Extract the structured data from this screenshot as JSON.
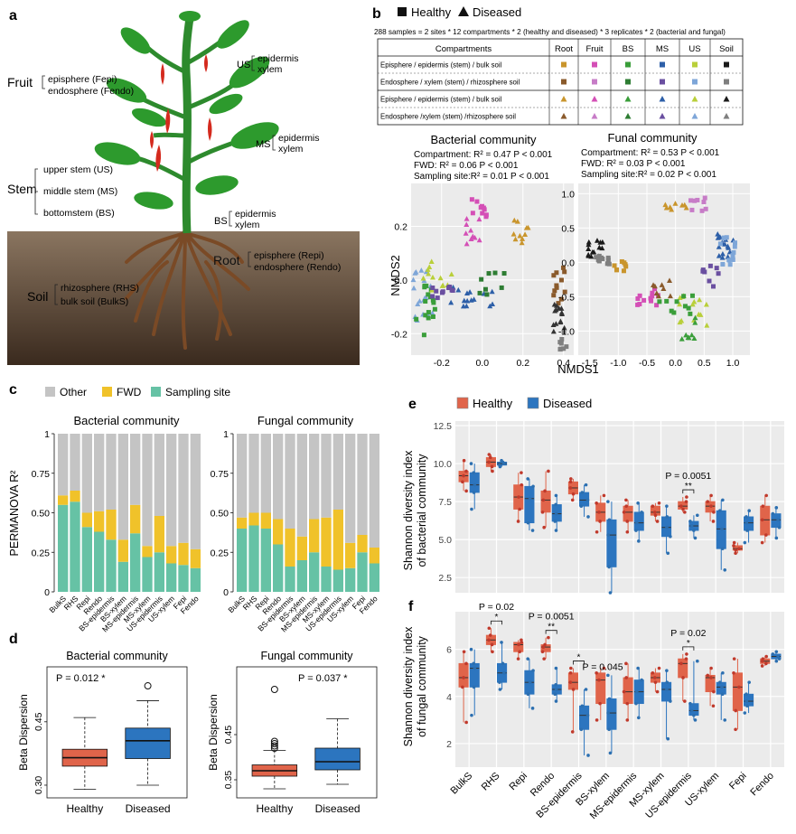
{
  "panel_a": {
    "letter": "a",
    "fruit": "Fruit",
    "fepi": "episphere (Fepi)",
    "fendo": "endosphere (Fendo)",
    "us_tag": "US",
    "us_epi": "epidermis",
    "us_xy": "xylem",
    "ms_tag": "MS",
    "ms_epi": "epidermis",
    "ms_xy": "xylem",
    "bs_tag": "BS",
    "bs_epi": "epidermis",
    "bs_xy": "xylem",
    "stem": "Stem",
    "stem_us": "upper stem (US)",
    "stem_ms": "middle stem (MS)",
    "stem_bs": "bottomstem (BS)",
    "root": "Root",
    "repi": "episphere (Repi)",
    "rendo": "endosphere (Rendo)",
    "soil": "Soil",
    "rhs": "rhizosphere (RHS)",
    "bulks": "bulk soil (BulkS)"
  },
  "panel_b": {
    "letter": "b",
    "legend_healthy": "Healthy",
    "legend_diseased": "Diseased",
    "samples_note": "288 samples =  2 sites  * 12 compartments * 2 (healthy and diseased)  * 3 replicates * 2 (bacterial and fungal)",
    "table_header": [
      "Compartments",
      "Root",
      "Fruit",
      "BS",
      "MS",
      "US",
      "Soil"
    ],
    "table_rows": [
      {
        "label": "Episphere / epidermis (stem) / bulk soil",
        "marker": "square"
      },
      {
        "label": "Endosphere / xylem (stem) / rhizosphere soil",
        "marker": "square"
      },
      {
        "label": "Episphere / epidermis (stem) / bulk soil",
        "marker": "triangle"
      },
      {
        "label": "Endosphere /xylem (stem) /rhizosphere soil",
        "marker": "triangle"
      }
    ],
    "table_colors": [
      [
        "#c9952c",
        "#d44fb6",
        "#3a9e3a",
        "#2d5fa8",
        "#b9cf3a",
        "#1a1a1a"
      ],
      [
        "#8a5a2b",
        "#c77cc7",
        "#2e7d33",
        "#6a4fa0",
        "#7ea6d8",
        "#7f7f7f"
      ],
      [
        "#c9952c",
        "#d44fb6",
        "#3a9e3a",
        "#2d5fa8",
        "#b9cf3a",
        "#1a1a1a"
      ],
      [
        "#8a5a2b",
        "#c77cc7",
        "#2e7d33",
        "#6a4fa0",
        "#7ea6d8",
        "#7f7f7f"
      ]
    ],
    "bact_title": "Bacterial community",
    "bact_stats": [
      "Compartment: R² = 0.47 P < 0.001",
      "FWD: R² = 0.06 P < 0.001",
      "Sampling site:R² = 0.01 P < 0.001"
    ],
    "fung_title": "Funal community",
    "fung_stats": [
      "Compartment: R² = 0.53 P < 0.001",
      "FWD: R² = 0.03 P < 0.001",
      "Sampling site:R² = 0.02 P < 0.001"
    ],
    "xlabel": "NMDS1",
    "ylabel": "NMDS2",
    "bact_xticks": [
      "-0.2",
      "0.0",
      "0.2",
      "0.4"
    ],
    "bact_yticks": [
      "0.2",
      "0.0",
      "-0.2"
    ],
    "fung_xticks": [
      "-1.5",
      "-1.0",
      "-0.5",
      "0.0",
      "0.5",
      "1.0"
    ],
    "fung_yticks": [
      "1.0",
      "0.5",
      "0.0",
      "-0.5",
      "-1.0"
    ]
  },
  "panel_c": {
    "letter": "c",
    "legend": [
      "Other",
      "FWD",
      "Sampling site"
    ],
    "ylabel": "PERMANOVA R²"
  },
  "panel_d": {
    "letter": "d",
    "ylabel": "Beta Dispersion"
  },
  "panel_e": {
    "letter": "e",
    "legend_healthy": "Healthy",
    "legend_diseased": "Diseased",
    "ylabel1": "Shannon diversity index",
    "ylabel2": "of bacterial community"
  },
  "panel_f": {
    "letter": "f",
    "ylabel1": "Shannon diversity index",
    "ylabel2": "of fungal community"
  },
  "chart_data": [
    {
      "id": "c-bacterial",
      "type": "bar",
      "stacked": true,
      "title": "Bacterial community",
      "ylabel": "PERMANOVA R²",
      "ylim": [
        0,
        1
      ],
      "yticks": [
        "0",
        "0.25",
        "0.50",
        "0.75",
        "1"
      ],
      "categories": [
        "BulkS",
        "RHS",
        "Repi",
        "Rendo",
        "BS-epidermis",
        "BS-xylem",
        "MS-epidermis",
        "MS-xylem",
        "US-epidermis",
        "US-xylem",
        "Fepi",
        "Fendo"
      ],
      "series": [
        {
          "name": "Sampling site",
          "color": "#66c2a5",
          "values": [
            0.55,
            0.57,
            0.41,
            0.38,
            0.33,
            0.19,
            0.37,
            0.22,
            0.25,
            0.18,
            0.17,
            0.15
          ]
        },
        {
          "name": "FWD",
          "color": "#f0c22a",
          "values": [
            0.06,
            0.07,
            0.09,
            0.13,
            0.19,
            0.14,
            0.18,
            0.07,
            0.23,
            0.11,
            0.14,
            0.12
          ]
        },
        {
          "name": "Other",
          "color": "#c4c4c4",
          "values": [
            0.39,
            0.36,
            0.5,
            0.49,
            0.48,
            0.67,
            0.45,
            0.71,
            0.52,
            0.71,
            0.69,
            0.73
          ]
        }
      ]
    },
    {
      "id": "c-fungal",
      "type": "bar",
      "stacked": true,
      "title": "Fungal community",
      "ylim": [
        0,
        1
      ],
      "yticks": [
        "0",
        "0.25",
        "0.50",
        "0.75",
        "1"
      ],
      "categories": [
        "BulkS",
        "RHS",
        "Repi",
        "Rendo",
        "BS-epidermis",
        "BS-xylem",
        "MS-epidermis",
        "MS-xylem",
        "US-epidermis",
        "US-xylem",
        "Fepi",
        "Fendo"
      ],
      "series": [
        {
          "name": "Sampling site",
          "color": "#66c2a5",
          "values": [
            0.4,
            0.42,
            0.4,
            0.3,
            0.16,
            0.2,
            0.25,
            0.16,
            0.14,
            0.15,
            0.25,
            0.18
          ]
        },
        {
          "name": "FWD",
          "color": "#f0c22a",
          "values": [
            0.07,
            0.08,
            0.1,
            0.16,
            0.24,
            0.15,
            0.21,
            0.31,
            0.38,
            0.16,
            0.11,
            0.1
          ]
        },
        {
          "name": "Other",
          "color": "#c4c4c4",
          "values": [
            0.53,
            0.5,
            0.5,
            0.54,
            0.6,
            0.65,
            0.54,
            0.53,
            0.48,
            0.69,
            0.64,
            0.72
          ]
        }
      ]
    },
    {
      "id": "d-bacterial",
      "type": "box",
      "title": "Bacterial community",
      "ylabel": "Beta Dispersion",
      "annotation": "P = 0.012 *",
      "yticks": [
        "0.30",
        "0.45"
      ],
      "ytick_values": [
        0.3,
        0.45
      ],
      "ylim": [
        0.27,
        0.58
      ],
      "categories": [
        "Healthy",
        "Diseased"
      ],
      "boxes": [
        {
          "name": "Healthy",
          "color": "#e0644a",
          "min": 0.29,
          "q1": 0.345,
          "median": 0.365,
          "q3": 0.385,
          "max": 0.46,
          "outliers": []
        },
        {
          "name": "Diseased",
          "color": "#2c75bf",
          "min": 0.3,
          "q1": 0.363,
          "median": 0.405,
          "q3": 0.435,
          "max": 0.5,
          "outliers": [
            0.535
          ]
        }
      ]
    },
    {
      "id": "d-fungal",
      "type": "box",
      "title": "Fungal community",
      "ylabel": "Beta Dispersion",
      "annotation": "P = 0.037 *",
      "yticks": [
        "0.35",
        "0.45"
      ],
      "ytick_values": [
        0.35,
        0.45
      ],
      "ylim": [
        0.31,
        0.6
      ],
      "categories": [
        "Healthy",
        "Diseased"
      ],
      "boxes": [
        {
          "name": "Healthy",
          "color": "#e0644a",
          "min": 0.33,
          "q1": 0.358,
          "median": 0.37,
          "q3": 0.383,
          "max": 0.415,
          "outliers": [
            0.42,
            0.425,
            0.43,
            0.435,
            0.55
          ]
        },
        {
          "name": "Diseased",
          "color": "#2c75bf",
          "min": 0.34,
          "q1": 0.372,
          "median": 0.39,
          "q3": 0.42,
          "max": 0.485,
          "outliers": []
        }
      ]
    },
    {
      "id": "e-shannon-bacterial",
      "type": "box",
      "ylabel": "Shannon diversity index of bacterial community",
      "ylim": [
        1.5,
        12.8
      ],
      "yticks": [
        "2.5",
        "5.0",
        "7.5",
        "10.0",
        "12.5"
      ],
      "ytick_values": [
        2.5,
        5.0,
        7.5,
        10.0,
        12.5
      ],
      "categories": [
        "BulkS",
        "RHS",
        "Repi",
        "Rendo",
        "BS-epidermis",
        "BS-xylem",
        "MS-epidermis",
        "MS-xylem",
        "US-epidermis",
        "US-xylem",
        "Fepi",
        "Fendo"
      ],
      "healthy": [
        [
          8.2,
          8.8,
          9.2,
          9.5,
          10.2
        ],
        [
          9.5,
          9.8,
          10.1,
          10.4,
          10.6
        ],
        [
          6.2,
          7.0,
          7.8,
          8.6,
          9.4
        ],
        [
          5.8,
          6.8,
          7.6,
          8.2,
          9.5
        ],
        [
          7.6,
          8.0,
          8.4,
          8.8,
          9.0
        ],
        [
          5.5,
          6.2,
          6.8,
          7.4,
          7.9
        ],
        [
          5.5,
          6.2,
          6.8,
          7.2,
          7.6
        ],
        [
          6.2,
          6.6,
          6.8,
          7.2,
          7.4
        ],
        [
          6.8,
          7.0,
          7.2,
          7.5,
          7.8
        ],
        [
          6.2,
          6.8,
          7.2,
          7.5,
          7.9
        ],
        [
          4.1,
          4.3,
          4.4,
          4.6,
          4.8
        ],
        [
          4.8,
          5.3,
          6.3,
          7.2,
          7.9
        ]
      ],
      "diseased": [
        [
          7.0,
          8.1,
          8.6,
          9.4,
          10.0
        ],
        [
          9.8,
          9.9,
          10.0,
          10.1,
          10.2
        ],
        [
          5.6,
          6.1,
          7.7,
          8.5,
          9.0
        ],
        [
          5.6,
          6.2,
          6.7,
          7.3,
          7.9
        ],
        [
          6.5,
          7.2,
          7.6,
          8.1,
          8.6
        ],
        [
          1.5,
          3.2,
          5.3,
          6.3,
          7.5
        ],
        [
          4.9,
          5.6,
          6.1,
          6.8,
          7.4
        ],
        [
          4.1,
          5.2,
          5.8,
          6.5,
          7.2
        ],
        [
          5.1,
          5.6,
          5.9,
          6.2,
          6.6
        ],
        [
          3.0,
          4.4,
          5.7,
          6.9,
          7.6
        ],
        [
          4.8,
          5.6,
          6.1,
          6.5,
          6.9
        ],
        [
          5.1,
          5.8,
          6.3,
          6.7,
          7.1
        ]
      ],
      "annotations": [
        {
          "index": 8,
          "text": "P = 0.0051",
          "stars": "**"
        }
      ]
    },
    {
      "id": "f-shannon-fungal",
      "type": "box",
      "ylabel": "Shannon diversity index of fungal community",
      "ylim": [
        1.0,
        7.6
      ],
      "yticks": [
        "2",
        "4",
        "6"
      ],
      "ytick_values": [
        2,
        4,
        6
      ],
      "categories": [
        "BulkS",
        "RHS",
        "Repi",
        "Rendo",
        "BS-epidermis",
        "BS-xylem",
        "MS-epidermis",
        "MS-xylem",
        "US-epidermis",
        "US-xylem",
        "Fepi",
        "Fendo"
      ],
      "healthy": [
        [
          2.9,
          4.4,
          4.8,
          5.4,
          5.9
        ],
        [
          5.9,
          6.2,
          6.4,
          6.6,
          6.9
        ],
        [
          5.6,
          5.9,
          6.2,
          6.3,
          6.4
        ],
        [
          5.6,
          5.9,
          6.1,
          6.2,
          6.5
        ],
        [
          2.5,
          4.3,
          4.6,
          5.0,
          5.2
        ],
        [
          3.0,
          3.7,
          4.7,
          5.0,
          5.2
        ],
        [
          3.0,
          3.7,
          4.2,
          4.8,
          5.4
        ],
        [
          4.2,
          4.6,
          4.8,
          5.0,
          5.2
        ],
        [
          3.8,
          4.8,
          5.4,
          5.6,
          5.8
        ],
        [
          3.6,
          4.2,
          4.8,
          4.9,
          5.2
        ],
        [
          2.6,
          3.4,
          4.4,
          5.0,
          5.6
        ],
        [
          5.3,
          5.4,
          5.5,
          5.6,
          5.7
        ]
      ],
      "diseased": [
        [
          3.2,
          4.4,
          5.2,
          5.4,
          6.0
        ],
        [
          4.3,
          4.6,
          5.0,
          5.4,
          6.3
        ],
        [
          3.5,
          4.1,
          4.6,
          5.1,
          5.6
        ],
        [
          3.8,
          4.1,
          4.3,
          4.5,
          5.2
        ],
        [
          1.5,
          2.6,
          3.2,
          3.6,
          4.3
        ],
        [
          1.6,
          2.6,
          3.3,
          3.9,
          4.9
        ],
        [
          3.1,
          3.7,
          4.2,
          4.7,
          5.2
        ],
        [
          2.2,
          3.8,
          4.3,
          4.6,
          5.1
        ],
        [
          3.0,
          3.2,
          3.4,
          3.7,
          5.5
        ],
        [
          3.0,
          4.1,
          4.4,
          4.6,
          5.0
        ],
        [
          3.3,
          3.6,
          3.8,
          4.1,
          4.6
        ],
        [
          5.5,
          5.6,
          5.7,
          5.8,
          5.9
        ]
      ],
      "annotations": [
        {
          "index": 1,
          "text": "P = 0.02",
          "stars": "*"
        },
        {
          "index": 3,
          "text": "P = 0.0051",
          "stars": "**"
        },
        {
          "index": 4,
          "text": "P = 0.045",
          "stars": "*"
        },
        {
          "index": 8,
          "text": "P = 0.02",
          "stars": "*"
        }
      ]
    },
    {
      "id": "b-nmds",
      "type": "scatter",
      "xlabel": "NMDS1",
      "ylabel": "NMDS2",
      "panels": [
        {
          "name": "Bacterial community",
          "xlim": [
            -0.35,
            0.45
          ],
          "ylim": [
            -0.28,
            0.36
          ]
        },
        {
          "name": "Funal community",
          "xlim": [
            -1.7,
            1.3
          ],
          "ylim": [
            -1.35,
            1.15
          ]
        }
      ]
    }
  ]
}
